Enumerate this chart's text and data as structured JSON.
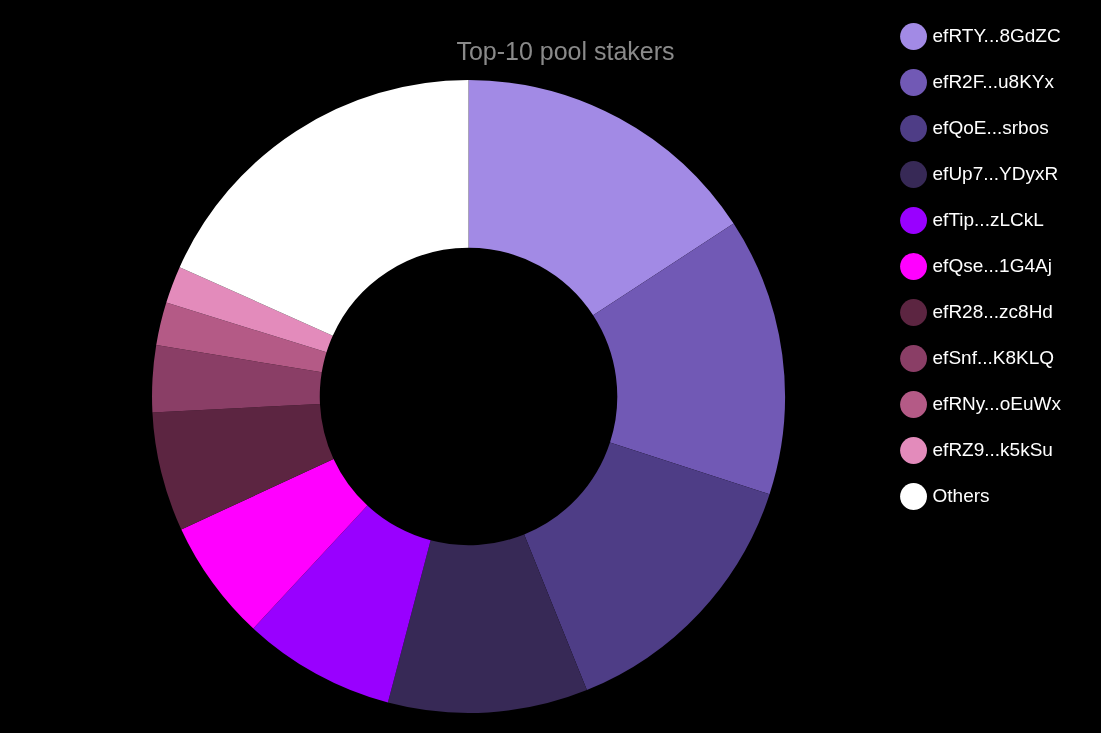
{
  "chart_data": {
    "type": "donut",
    "title": "Top-10 pool stakers",
    "categories": [
      "efRTY...8GdZC",
      "efR2F...u8KYx",
      "efQoE...srbos",
      "efUp7...YDyxR",
      "efTip...zLCkL",
      "efQse...1G4Aj",
      "efR28...zc8Hd",
      "efSnf...K8KLQ",
      "efRNy...oEuWx",
      "efRZ9...k5kSu",
      "Others"
    ],
    "values": [
      15.8,
      14.2,
      13.9,
      10.2,
      7.8,
      6.2,
      6.1,
      3.4,
      2.2,
      1.9,
      18.3
    ],
    "colors": [
      "#a28ae5",
      "#7159b5",
      "#4e3d86",
      "#372956",
      "#9900ff",
      "#ff00ff",
      "#5c2541",
      "#8a3e66",
      "#b45a86",
      "#e38bbb",
      "#ffffff"
    ],
    "legend": "right"
  }
}
